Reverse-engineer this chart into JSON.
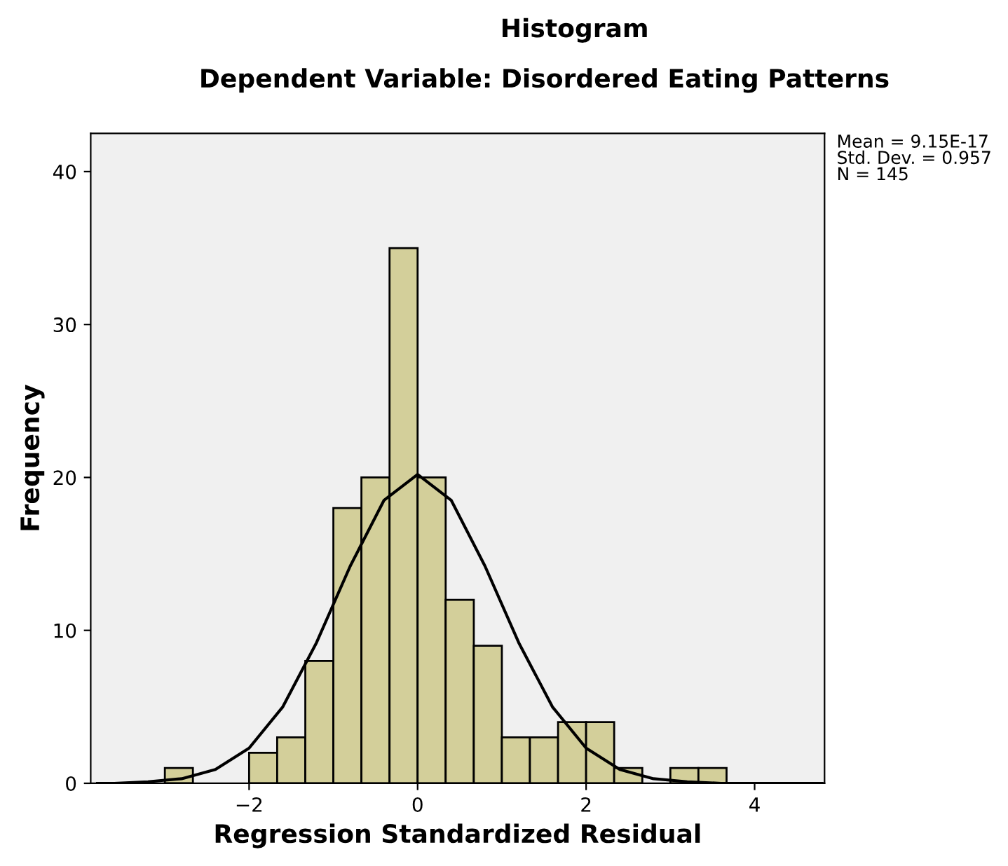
{
  "chart_data": {
    "type": "histogram",
    "title": "Histogram",
    "subtitle": "Dependent Variable: Disordered Eating Patterns",
    "xlabel": "Regression Standardized Residual",
    "ylabel": "Frequency",
    "bins": [
      -3,
      -2.667,
      -2.333,
      -2,
      -1.667,
      -1.333,
      -1,
      -0.667,
      -0.333,
      0,
      0.333,
      0.667,
      1,
      1.333,
      1.667,
      2,
      2.333,
      2.667,
      3,
      3.333,
      3.667
    ],
    "values": [
      1,
      0,
      0,
      2,
      3,
      8,
      18,
      20,
      35,
      20,
      12,
      9,
      3,
      3,
      4,
      4,
      1,
      0,
      1,
      1
    ],
    "color": "#d3cf9a",
    "series": [
      {
        "type": "line",
        "color": "#000000",
        "x": [
          -3.8,
          -3.6,
          -3.2,
          -2.8,
          -2.4,
          -2.0,
          -1.6,
          -1.2,
          -0.8,
          -0.4,
          0,
          0.4,
          0.8,
          1.2,
          1.6,
          2.0,
          2.4,
          2.8,
          3.2,
          3.6,
          4.0,
          4.4,
          4.8
        ],
        "values": [
          0,
          0,
          0.1,
          0.3,
          0.9,
          2.3,
          5.0,
          9.2,
          14.2,
          18.5,
          20.2,
          18.5,
          14.2,
          9.2,
          5.0,
          2.3,
          0.9,
          0.3,
          0.1,
          0,
          0,
          0,
          0
        ]
      }
    ],
    "xlim": [
      -3.88,
      4.83
    ],
    "ylim": [
      0,
      42.5
    ],
    "xticks": [
      {
        "value": -2,
        "label": "−2"
      },
      0,
      2,
      4
    ],
    "yticks": [
      0,
      10,
      20,
      30,
      40
    ],
    "grid": false,
    "legend": false,
    "annotations": [
      "Mean = 9.15E-17\nStd. Dev. = 0.957\nN = 145"
    ]
  }
}
